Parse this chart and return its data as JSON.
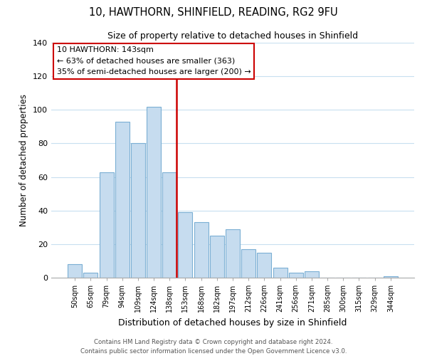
{
  "title": "10, HAWTHORN, SHINFIELD, READING, RG2 9FU",
  "subtitle": "Size of property relative to detached houses in Shinfield",
  "xlabel": "Distribution of detached houses by size in Shinfield",
  "ylabel": "Number of detached properties",
  "bar_labels": [
    "50sqm",
    "65sqm",
    "79sqm",
    "94sqm",
    "109sqm",
    "124sqm",
    "138sqm",
    "153sqm",
    "168sqm",
    "182sqm",
    "197sqm",
    "212sqm",
    "226sqm",
    "241sqm",
    "256sqm",
    "271sqm",
    "285sqm",
    "300sqm",
    "315sqm",
    "329sqm",
    "344sqm"
  ],
  "bar_values": [
    8,
    3,
    63,
    93,
    80,
    102,
    63,
    39,
    33,
    25,
    29,
    17,
    15,
    6,
    3,
    4,
    0,
    0,
    0,
    0,
    1
  ],
  "bar_color": "#c6dcef",
  "bar_edge_color": "#7bafd4",
  "highlight_index": 6,
  "highlight_line_color": "#cc0000",
  "ylim": [
    0,
    140
  ],
  "yticks": [
    0,
    20,
    40,
    60,
    80,
    100,
    120,
    140
  ],
  "annotation_title": "10 HAWTHORN: 143sqm",
  "annotation_line1": "← 63% of detached houses are smaller (363)",
  "annotation_line2": "35% of semi-detached houses are larger (200) →",
  "annotation_box_color": "#ffffff",
  "annotation_box_edge_color": "#cc0000",
  "footer_line1": "Contains HM Land Registry data © Crown copyright and database right 2024.",
  "footer_line2": "Contains public sector information licensed under the Open Government Licence v3.0.",
  "background_color": "#ffffff",
  "grid_color": "#c8dff0"
}
